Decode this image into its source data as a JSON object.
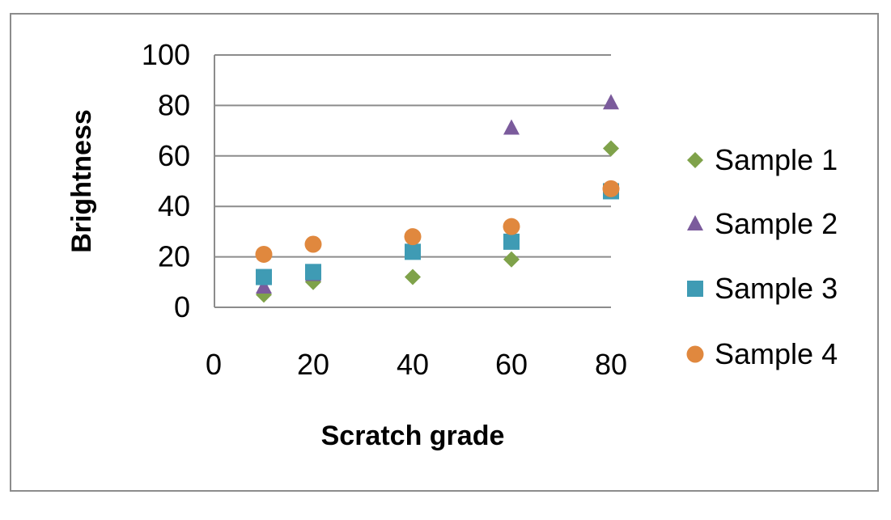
{
  "chart_data": {
    "type": "scatter",
    "title": "",
    "xlabel": "Scratch grade",
    "ylabel": "Brightness",
    "xlim": [
      0,
      80
    ],
    "ylim": [
      0,
      100
    ],
    "x_ticks": [
      0,
      20,
      40,
      60,
      80
    ],
    "y_ticks": [
      0,
      20,
      40,
      60,
      80,
      100
    ],
    "grid": "horizontal",
    "legend_position": "right",
    "x_categories": [
      10,
      20,
      40,
      60,
      80
    ],
    "series": [
      {
        "name": "Sample 1",
        "marker": "diamond",
        "color": "#7fa24a",
        "x": [
          10,
          20,
          40,
          60,
          80
        ],
        "y": [
          5,
          10,
          12,
          19,
          63
        ]
      },
      {
        "name": "Sample 2",
        "marker": "triangle",
        "color": "#7b5b9c",
        "x": [
          10,
          20,
          40,
          60,
          80
        ],
        "y": [
          8,
          13,
          22,
          71,
          81
        ]
      },
      {
        "name": "Sample 3",
        "marker": "square",
        "color": "#3f9bb4",
        "x": [
          10,
          20,
          40,
          60,
          80
        ],
        "y": [
          12,
          14,
          22,
          26,
          46
        ]
      },
      {
        "name": "Sample 4",
        "marker": "circle",
        "color": "#e0883e",
        "x": [
          10,
          20,
          40,
          60,
          80
        ],
        "y": [
          21,
          25,
          28,
          32,
          47
        ]
      }
    ]
  }
}
